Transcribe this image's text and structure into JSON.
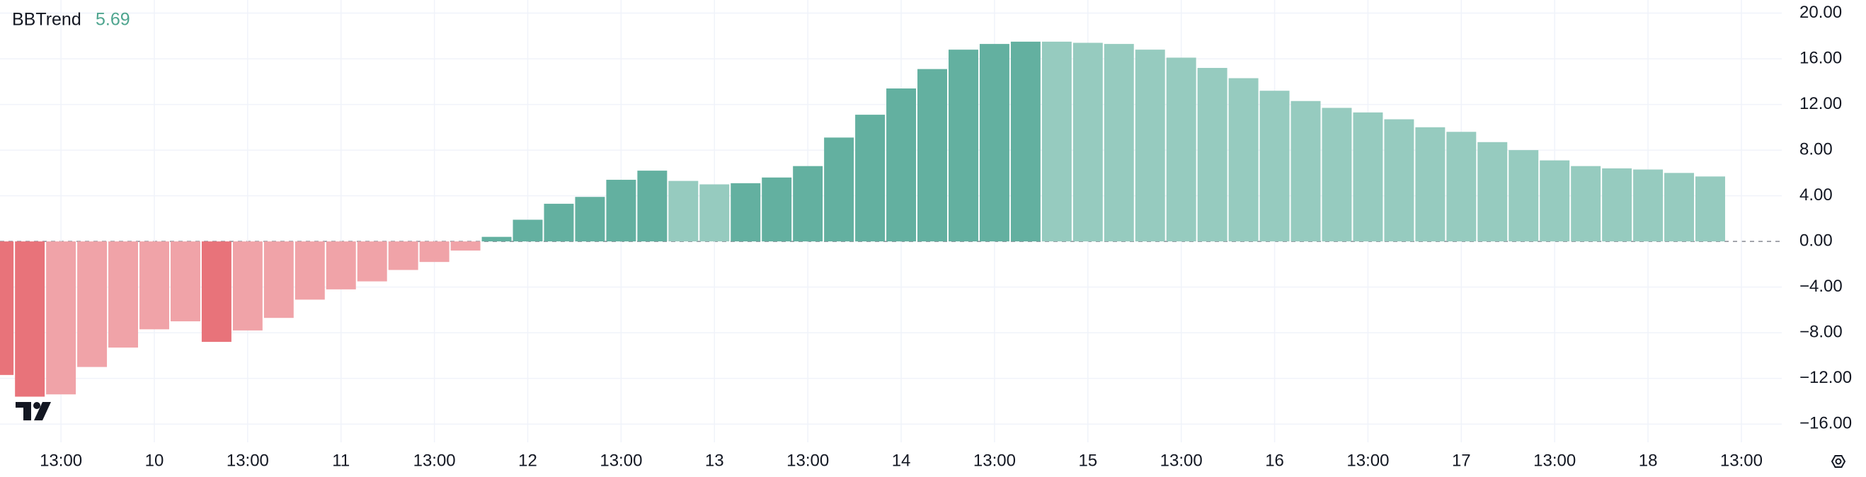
{
  "chart_data": {
    "type": "bar",
    "title": "BBTrend",
    "last_value": 5.69,
    "categories": [
      null,
      null,
      "13:00",
      null,
      null,
      "10",
      null,
      null,
      "13:00",
      null,
      null,
      "11",
      null,
      null,
      "13:00",
      null,
      null,
      "12",
      null,
      null,
      "13:00",
      null,
      null,
      "13",
      null,
      null,
      "13:00",
      null,
      null,
      "14",
      null,
      null,
      "13:00",
      null,
      null,
      "15",
      null,
      null,
      "13:00",
      null,
      null,
      "16",
      null,
      null,
      "13:00",
      null,
      null,
      "17",
      null,
      null,
      "13:00",
      null,
      null,
      "18",
      null,
      null,
      "13:00"
    ],
    "values": [
      -11.7,
      -13.6,
      -13.4,
      -11.0,
      -9.3,
      -7.7,
      -7.0,
      -8.8,
      -7.8,
      -6.7,
      -5.1,
      -4.2,
      -3.5,
      -2.5,
      -1.8,
      -0.8,
      0.4,
      1.9,
      3.3,
      3.9,
      5.4,
      6.2,
      5.3,
      5.0,
      5.1,
      5.6,
      6.6,
      9.1,
      11.1,
      13.4,
      15.1,
      16.8,
      17.3,
      17.5,
      17.5,
      17.4,
      17.3,
      16.8,
      16.1,
      15.2,
      14.3,
      13.2,
      12.3,
      11.7,
      11.3,
      10.7,
      10.0,
      9.6,
      8.7,
      8.0,
      7.1,
      6.6,
      6.4,
      6.3,
      6.0,
      5.69,
      null
    ],
    "colors": [
      "#e8737a",
      "#e8737a",
      "#f0a3a8",
      "#f0a3a8",
      "#f0a3a8",
      "#f0a3a8",
      "#f0a3a8",
      "#e8737a",
      "#f0a3a8",
      "#f0a3a8",
      "#f0a3a8",
      "#f0a3a8",
      "#f0a3a8",
      "#f0a3a8",
      "#f0a3a8",
      "#f0a3a8",
      "#63b0a0",
      "#63b0a0",
      "#63b0a0",
      "#63b0a0",
      "#63b0a0",
      "#63b0a0",
      "#96cbbf",
      "#96cbbf",
      "#63b0a0",
      "#63b0a0",
      "#63b0a0",
      "#63b0a0",
      "#63b0a0",
      "#63b0a0",
      "#63b0a0",
      "#63b0a0",
      "#63b0a0",
      "#63b0a0",
      "#96cbbf",
      "#96cbbf",
      "#96cbbf",
      "#96cbbf",
      "#96cbbf",
      "#96cbbf",
      "#96cbbf",
      "#96cbbf",
      "#96cbbf",
      "#96cbbf",
      "#96cbbf",
      "#96cbbf",
      "#96cbbf",
      "#96cbbf",
      "#96cbbf",
      "#96cbbf",
      "#96cbbf",
      "#96cbbf",
      "#96cbbf",
      "#96cbbf",
      "#96cbbf",
      "#96cbbf",
      null
    ],
    "ylim": [
      -17.6,
      21.15
    ],
    "yticks": [
      {
        "value": 20,
        "label": "20.00"
      },
      {
        "value": 16,
        "label": "16.00"
      },
      {
        "value": 12,
        "label": "12.00"
      },
      {
        "value": 8,
        "label": "8.00"
      },
      {
        "value": 4,
        "label": "4.00"
      },
      {
        "value": 0,
        "label": "0.00"
      },
      {
        "value": -4,
        "label": "−4.00"
      },
      {
        "value": -8,
        "label": "−8.00"
      },
      {
        "value": -12,
        "label": "−12.00"
      },
      {
        "value": -16,
        "label": "−16.00"
      }
    ],
    "grid": true
  }
}
